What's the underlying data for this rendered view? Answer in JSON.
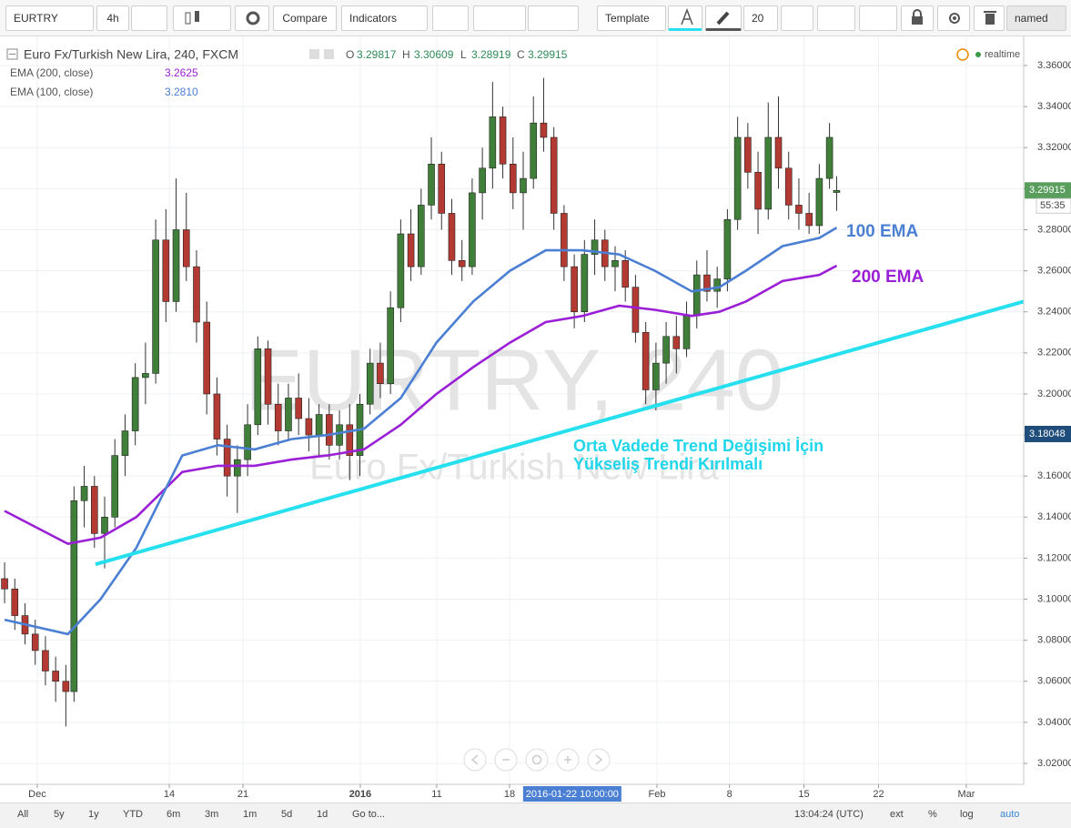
{
  "toolbar": {
    "symbol": "EURTRY",
    "interval": "4h",
    "compare": "Compare",
    "indicators": "Indicators",
    "template": "Template",
    "font_size": "20",
    "layout_name": "named"
  },
  "legend": {
    "title": "Euro Fx/Turkish New Lira, 240, FXCM",
    "o": "O",
    "h": "H",
    "l": "L",
    "c": "C",
    "realtime": "realtime"
  },
  "watermark": {
    "symbol": "EURTRY, 240",
    "description": "Euro Fx/Turkish New Lira"
  },
  "bottom_bar": {
    "ranges": [
      "All",
      "5y",
      "1y",
      "YTD",
      "6m",
      "3m",
      "1m",
      "5d",
      "1d"
    ],
    "goto": "Go to...",
    "time": "13:04:24 (UTC)",
    "options": [
      "ext",
      "%",
      "log",
      "auto"
    ]
  },
  "chart_data": {
    "type": "candlestick",
    "xlim": [
      -3.65,
      96.62
    ],
    "ylim": [
      3.0098,
      3.3742
    ],
    "grid": true,
    "up_color": "#3f7f3a",
    "down_color": "#b23a32",
    "last_color": "#5a9e5e",
    "crosshair_color": "#1f4e7a",
    "date_label_color": "#4a7fd4",
    "xticks": [
      {
        "value": 0,
        "label": "Dec"
      },
      {
        "value": 12.93,
        "label": "14"
      },
      {
        "value": 20.15,
        "label": "21"
      },
      {
        "value": 31.64,
        "label": "2016",
        "bold": true
      },
      {
        "value": 39.13,
        "label": "11"
      },
      {
        "value": 46.26,
        "label": "18"
      },
      {
        "value": 60.7,
        "label": "Feb"
      },
      {
        "value": 67.8,
        "label": "8"
      },
      {
        "value": 75.1,
        "label": "15"
      },
      {
        "value": 82.4,
        "label": "22"
      },
      {
        "value": 91.0,
        "label": "Mar"
      }
    ],
    "yticks": [
      {
        "value": 3.02,
        "label": "3.02000"
      },
      {
        "value": 3.04,
        "label": "3.04000"
      },
      {
        "value": 3.06,
        "label": "3.06000"
      },
      {
        "value": 3.08,
        "label": "3.08000"
      },
      {
        "value": 3.1,
        "label": "3.10000"
      },
      {
        "value": 3.12,
        "label": "3.12000"
      },
      {
        "value": 3.14,
        "label": "3.14000"
      },
      {
        "value": 3.16,
        "label": "3.16000"
      },
      {
        "value": 3.18,
        "label": "3.18000"
      },
      {
        "value": 3.2,
        "label": "3.20000"
      },
      {
        "value": 3.22,
        "label": "3.22000"
      },
      {
        "value": 3.24,
        "label": "3.24000"
      },
      {
        "value": 3.26,
        "label": "3.26000"
      },
      {
        "value": 3.28,
        "label": "3.28000"
      },
      {
        "value": 3.3,
        "label": "3.30000"
      },
      {
        "value": 3.32,
        "label": "3.32000"
      },
      {
        "value": 3.34,
        "label": "3.34000"
      },
      {
        "value": 3.36,
        "label": "3.36000"
      }
    ],
    "x": [
      -3.2,
      -2.2,
      -1.2,
      -0.2,
      0.8,
      1.8,
      2.8,
      3.6,
      4.6,
      5.6,
      6.6,
      7.6,
      8.6,
      9.6,
      10.6,
      11.6,
      12.6,
      13.6,
      14.6,
      15.6,
      16.6,
      17.6,
      18.6,
      19.6,
      20.6,
      21.6,
      22.6,
      23.6,
      24.6,
      25.6,
      26.6,
      27.6,
      28.6,
      29.6,
      30.6,
      31.6,
      32.6,
      33.6,
      34.6,
      35.6,
      36.6,
      37.6,
      38.6,
      39.6,
      40.6,
      41.6,
      42.6,
      43.6,
      44.6,
      45.6,
      46.6,
      47.6,
      48.6,
      49.6,
      50.6,
      51.6,
      52.6,
      53.6,
      54.6,
      55.6,
      56.6,
      57.6,
      58.6,
      59.6,
      60.6,
      61.6,
      62.6,
      63.6,
      64.6,
      65.6,
      66.6,
      67.6,
      68.6,
      69.6,
      70.6,
      71.6,
      72.6,
      73.6,
      74.6,
      75.6,
      76.6,
      77.6,
      78.3
    ],
    "open": [
      3.11,
      3.105,
      3.092,
      3.083,
      3.075,
      3.065,
      3.06,
      3.055,
      3.148,
      3.155,
      3.132,
      3.14,
      3.17,
      3.182,
      3.208,
      3.21,
      3.275,
      3.245,
      3.28,
      3.262,
      3.235,
      3.2,
      3.178,
      3.16,
      3.168,
      3.185,
      3.222,
      3.195,
      3.182,
      3.198,
      3.188,
      3.18,
      3.19,
      3.175,
      3.185,
      3.17,
      3.195,
      3.215,
      3.205,
      3.242,
      3.278,
      3.262,
      3.292,
      3.312,
      3.288,
      3.265,
      3.262,
      3.298,
      3.31,
      3.335,
      3.312,
      3.298,
      3.305,
      3.332,
      3.325,
      3.288,
      3.262,
      3.24,
      3.268,
      3.275,
      3.262,
      3.265,
      3.252,
      3.23,
      3.202,
      3.215,
      3.228,
      3.222,
      3.238,
      3.258,
      3.25,
      3.256,
      3.285,
      3.325,
      3.308,
      3.29,
      3.325,
      3.31,
      3.292,
      3.288,
      3.282,
      3.305,
      3.29817
    ],
    "high": [
      3.118,
      3.11,
      3.098,
      3.09,
      3.082,
      3.072,
      3.068,
      3.155,
      3.165,
      3.16,
      3.15,
      3.178,
      3.19,
      3.215,
      3.225,
      3.285,
      3.29,
      3.305,
      3.298,
      3.27,
      3.245,
      3.208,
      3.185,
      3.175,
      3.195,
      3.228,
      3.226,
      3.205,
      3.205,
      3.21,
      3.198,
      3.195,
      3.195,
      3.192,
      3.195,
      3.2,
      3.222,
      3.225,
      3.25,
      3.285,
      3.29,
      3.3,
      3.325,
      3.318,
      3.295,
      3.275,
      3.305,
      3.32,
      3.352,
      3.34,
      3.325,
      3.318,
      3.345,
      3.354,
      3.33,
      3.292,
      3.268,
      3.275,
      3.285,
      3.28,
      3.272,
      3.27,
      3.258,
      3.235,
      3.225,
      3.235,
      3.238,
      3.245,
      3.265,
      3.27,
      3.262,
      3.29,
      3.335,
      3.332,
      3.318,
      3.342,
      3.345,
      3.318,
      3.305,
      3.298,
      3.312,
      3.332,
      3.30609
    ],
    "low": [
      3.098,
      3.085,
      3.078,
      3.068,
      3.058,
      3.05,
      3.038,
      3.05,
      3.135,
      3.125,
      3.115,
      3.135,
      3.16,
      3.175,
      3.195,
      3.205,
      3.235,
      3.24,
      3.255,
      3.225,
      3.19,
      3.17,
      3.15,
      3.142,
      3.16,
      3.18,
      3.185,
      3.175,
      3.178,
      3.18,
      3.172,
      3.17,
      3.168,
      3.168,
      3.158,
      3.16,
      3.19,
      3.198,
      3.2,
      3.235,
      3.255,
      3.258,
      3.285,
      3.28,
      3.258,
      3.255,
      3.258,
      3.285,
      3.3,
      3.305,
      3.29,
      3.28,
      3.3,
      3.318,
      3.28,
      3.255,
      3.232,
      3.235,
      3.258,
      3.255,
      3.25,
      3.245,
      3.225,
      3.195,
      3.192,
      3.205,
      3.21,
      3.218,
      3.232,
      3.245,
      3.242,
      3.25,
      3.28,
      3.3,
      3.278,
      3.285,
      3.3,
      3.285,
      3.28,
      3.278,
      3.278,
      3.3,
      3.28919
    ],
    "close": [
      3.105,
      3.092,
      3.083,
      3.075,
      3.065,
      3.06,
      3.055,
      3.148,
      3.155,
      3.132,
      3.14,
      3.17,
      3.182,
      3.208,
      3.21,
      3.275,
      3.245,
      3.28,
      3.262,
      3.235,
      3.2,
      3.178,
      3.16,
      3.168,
      3.185,
      3.222,
      3.195,
      3.182,
      3.198,
      3.188,
      3.18,
      3.19,
      3.175,
      3.185,
      3.17,
      3.195,
      3.215,
      3.205,
      3.242,
      3.278,
      3.262,
      3.292,
      3.312,
      3.288,
      3.265,
      3.262,
      3.298,
      3.31,
      3.335,
      3.312,
      3.298,
      3.305,
      3.332,
      3.325,
      3.288,
      3.262,
      3.24,
      3.268,
      3.275,
      3.262,
      3.265,
      3.252,
      3.23,
      3.202,
      3.215,
      3.228,
      3.222,
      3.238,
      3.258,
      3.25,
      3.256,
      3.285,
      3.325,
      3.308,
      3.29,
      3.325,
      3.31,
      3.292,
      3.288,
      3.282,
      3.305,
      3.325,
      3.29915
    ],
    "series": [
      {
        "name": "EMA (200, close)",
        "color": "#9b1fd6",
        "value_label": "3.2625",
        "x": [
          -3.2,
          3.0,
          6.2,
          9.7,
          14.2,
          17.7,
          21.3,
          24.9,
          28.4,
          32.0,
          35.6,
          39.1,
          42.7,
          46.3,
          49.8,
          53.4,
          57.0,
          60.5,
          64.1,
          66.8,
          69.4,
          73.0,
          76.6,
          78.3
        ],
        "values": [
          3.143,
          3.127,
          3.13,
          3.14,
          3.162,
          3.165,
          3.165,
          3.168,
          3.17,
          3.173,
          3.185,
          3.2,
          3.213,
          3.225,
          3.235,
          3.238,
          3.243,
          3.241,
          3.238,
          3.24,
          3.245,
          3.255,
          3.258,
          3.2625
        ]
      },
      {
        "name": "EMA (100, close)",
        "color": "#4a7fd4",
        "value_label": "3.2810",
        "x": [
          -3.2,
          3.0,
          6.2,
          9.7,
          14.2,
          17.7,
          21.3,
          24.9,
          28.4,
          32.0,
          35.6,
          39.1,
          42.7,
          46.3,
          49.8,
          53.4,
          57.0,
          60.5,
          64.1,
          66.8,
          69.4,
          73.0,
          76.6,
          78.3
        ],
        "values": [
          3.09,
          3.083,
          3.1,
          3.125,
          3.17,
          3.175,
          3.173,
          3.178,
          3.18,
          3.183,
          3.198,
          3.225,
          3.245,
          3.26,
          3.27,
          3.27,
          3.268,
          3.26,
          3.25,
          3.252,
          3.26,
          3.272,
          3.276,
          3.281
        ]
      }
    ],
    "trendline": {
      "color": "#26e0ef",
      "x": [
        5.7,
        96.6
      ],
      "values": [
        3.117,
        3.245
      ]
    },
    "crosshair": {
      "x": 52.4,
      "x_label": "2016-01-22 10:00:00",
      "y": 3.18048
    },
    "countdown": "55:35",
    "annotations": [
      {
        "text": "100 EMA",
        "color": "#4a7fd4"
      },
      {
        "text": "200 EMA",
        "color": "#9b1fd6"
      },
      {
        "text": "Orta Vadede Trend Değişimi İçin",
        "color": "#1fd6ea"
      },
      {
        "text": "Yükseliş Trendi Kırılmalı",
        "color": "#1fd6ea"
      }
    ]
  }
}
